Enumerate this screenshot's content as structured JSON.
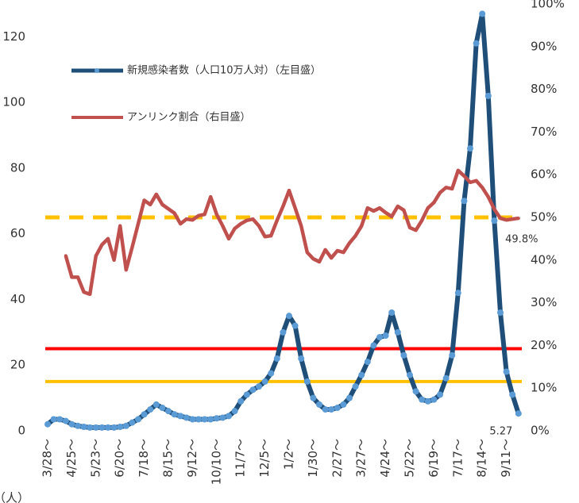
{
  "chart_data": {
    "type": "line",
    "y_label": "（人）",
    "categories": [
      "3/28～",
      null,
      null,
      null,
      "4/25～",
      null,
      null,
      null,
      "5/23～",
      null,
      null,
      null,
      "6/20～",
      null,
      null,
      null,
      "7/18～",
      null,
      null,
      null,
      "8/15～",
      null,
      null,
      null,
      "9/12～",
      null,
      null,
      null,
      "10/10～",
      null,
      null,
      null,
      "11/7～",
      null,
      null,
      null,
      "12/5～",
      null,
      null,
      null,
      "1/2～",
      null,
      null,
      null,
      "1/30～",
      null,
      null,
      null,
      "2/27～",
      null,
      null,
      null,
      "3/27～",
      null,
      null,
      null,
      "4/24～",
      null,
      null,
      null,
      "5/22～",
      null,
      null,
      null,
      "6/19～",
      null,
      null,
      null,
      "7/17～",
      null,
      null,
      null,
      "8/14～",
      null,
      null,
      null,
      "9/11～",
      null,
      null
    ],
    "series": [
      {
        "name": "新規感染者数（人口10万人対）（左目盛）",
        "color": "#1f4e79",
        "marker_color": "#5b9bd5",
        "axis": "y",
        "values": [
          2,
          3.5,
          3.5,
          3,
          2,
          1.5,
          1.2,
          1,
          1,
          1,
          1,
          1,
          1.2,
          1.5,
          2.5,
          3.5,
          5,
          6.5,
          8,
          7,
          6,
          5,
          4.5,
          4,
          3.5,
          3.5,
          3.5,
          3.5,
          3.8,
          4,
          4.5,
          6,
          9,
          11,
          12.5,
          13.5,
          15,
          17.5,
          22,
          30,
          35,
          32,
          22,
          15,
          10,
          8,
          6.5,
          6.5,
          7,
          8,
          10,
          13.5,
          17,
          21,
          26,
          28.5,
          29,
          36,
          30,
          23,
          17,
          12,
          9.5,
          9,
          9.5,
          11,
          16,
          23,
          42,
          70,
          86,
          118,
          127,
          102,
          64,
          36,
          18,
          11,
          5.27
        ]
      },
      {
        "name": "アンリンク割合（右目盛）",
        "color": "#c0504d",
        "axis": "y2",
        "values": [
          null,
          null,
          null,
          41,
          36,
          36,
          32.5,
          32,
          41,
          43.6,
          45,
          40,
          48,
          37.7,
          43,
          48.5,
          54,
          53,
          55.4,
          53,
          52,
          51,
          48.5,
          49.6,
          49.4,
          50.4,
          50.7,
          54.8,
          50.7,
          48,
          45,
          47.4,
          48.5,
          49.3,
          49.6,
          48,
          45.5,
          45.7,
          49.3,
          52.6,
          56.3,
          52.2,
          48,
          41.8,
          40.3,
          39.6,
          42.4,
          40.5,
          42.2,
          41.8,
          44,
          45.7,
          48,
          52.2,
          51.5,
          52.2,
          51.1,
          50.2,
          52.6,
          51.7,
          47.6,
          47,
          49.3,
          52.2,
          53.5,
          55.8,
          57,
          56.7,
          61,
          59.7,
          58.2,
          58.6,
          57,
          54.8,
          51.9,
          49.8,
          49.4,
          49.6,
          49.8
        ],
        "value_labels": [
          null,
          null,
          null,
          null,
          null,
          null,
          null,
          null,
          null,
          null,
          null,
          null,
          null,
          null,
          null,
          null,
          null,
          null,
          null,
          null,
          null,
          null,
          null,
          null,
          null,
          null,
          null,
          null,
          null,
          null,
          null,
          null,
          null,
          null,
          null,
          null,
          null,
          null,
          null,
          null,
          null,
          null,
          null,
          null,
          null,
          null,
          null,
          null,
          null,
          null,
          null,
          null,
          null,
          null,
          null,
          null,
          null,
          null,
          null,
          null,
          null,
          null,
          null,
          null,
          null,
          null,
          null,
          null,
          null,
          null,
          null,
          null,
          null,
          null,
          null,
          null,
          null,
          null,
          "49.8%"
        ]
      }
    ],
    "data_labels": [
      {
        "series": 0,
        "index": 78
      }
    ],
    "reference_lines": [
      {
        "value": 65,
        "color": "#ffc000",
        "style": "dashed"
      },
      {
        "value": 25,
        "color": "#ff0000",
        "style": "solid"
      },
      {
        "value": 15,
        "color": "#ffc000",
        "style": "solid"
      }
    ],
    "ylim": [
      0,
      130
    ],
    "yticks": [
      0,
      20,
      40,
      60,
      80,
      100,
      120
    ],
    "y2lim": [
      0,
      100
    ],
    "y2ticks": [
      {
        "value": 0,
        "label": "0%"
      },
      {
        "value": 10,
        "label": "10%"
      },
      {
        "value": 20,
        "label": "20%"
      },
      {
        "value": 30,
        "label": "30%"
      },
      {
        "value": 40,
        "label": "40%"
      },
      {
        "value": 50,
        "label": "50%"
      },
      {
        "value": 60,
        "label": "60%"
      },
      {
        "value": 70,
        "label": "70%"
      },
      {
        "value": 80,
        "label": "80%"
      },
      {
        "value": 90,
        "label": "90%"
      },
      {
        "value": 100,
        "label": "100%"
      }
    ],
    "grid": false
  }
}
